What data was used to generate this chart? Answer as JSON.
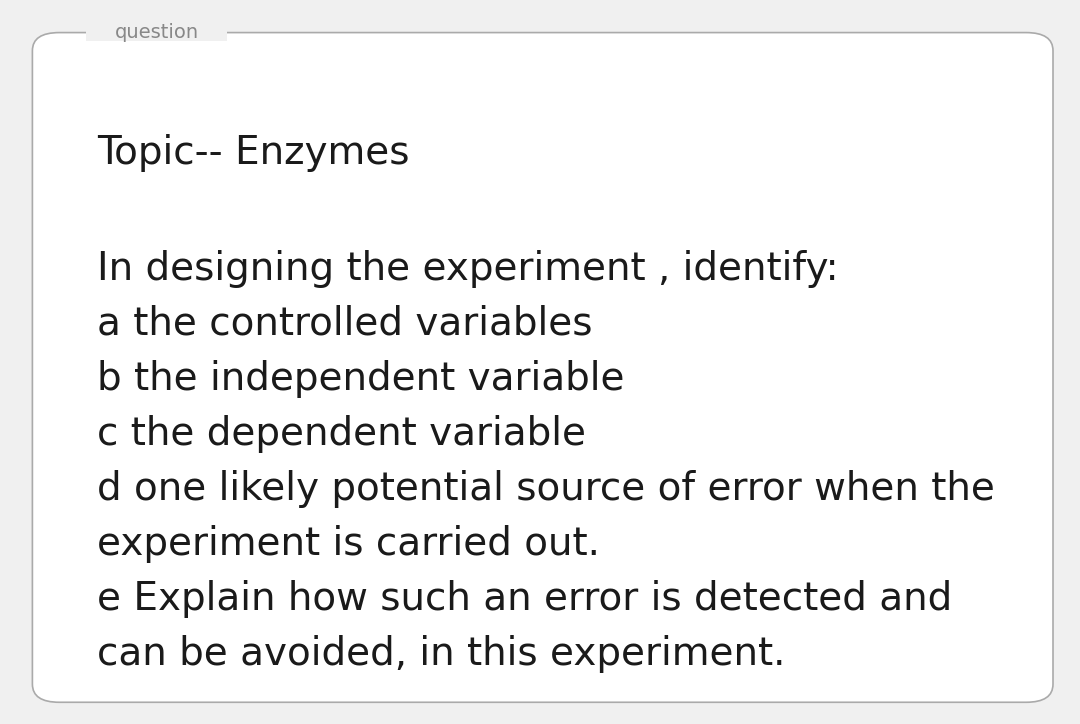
{
  "background_color": "#f0f0f0",
  "box_color": "#ffffff",
  "box_edge_color": "#aaaaaa",
  "label_text": "question",
  "label_color": "#888888",
  "label_fontsize": 14,
  "topic_text": "Topic-- Enzymes",
  "topic_fontsize": 28,
  "body_lines": [
    "In designing the experiment , identify:",
    "a the controlled variables",
    "b the independent variable",
    "c the dependent variable",
    "d one likely potential source of error when the",
    "experiment is carried out.",
    "e Explain how such an error is detected and",
    "can be avoided, in this experiment."
  ],
  "body_fontsize": 28,
  "text_color": "#1a1a1a",
  "fig_width": 10.8,
  "fig_height": 7.24
}
